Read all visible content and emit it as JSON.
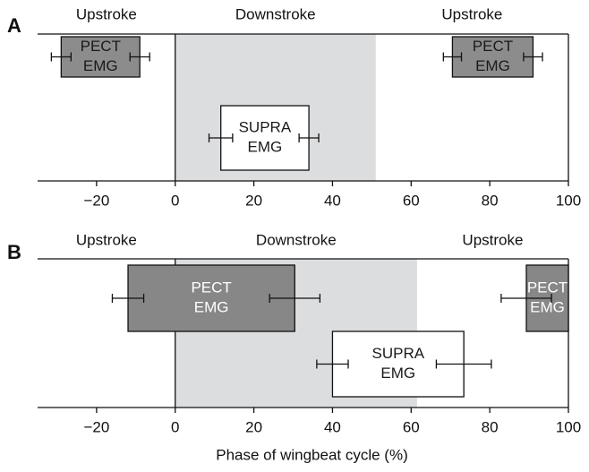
{
  "chart_data": [
    {
      "type": "phase",
      "panel": "A",
      "regions": [
        "Upstroke",
        "Downstroke",
        "Upstroke"
      ],
      "shade": [
        0,
        51
      ],
      "shade_color": "#dcdddf",
      "xlim": [
        -35,
        100
      ],
      "xticks": [
        {
          "value": -20,
          "label": "−20"
        },
        0,
        20,
        40,
        60,
        80,
        100
      ],
      "series": [
        {
          "label": [
            "PECT",
            "EMG"
          ],
          "color": "#8c8c8c",
          "text_color": "#1a1a1a",
          "bars": [
            {
              "start": -29,
              "end": -9,
              "start_err": 2.5,
              "end_err": 2.5
            },
            {
              "start": 70.5,
              "end": 91,
              "start_err": 2.3,
              "end_err": 2.4
            }
          ]
        },
        {
          "label": [
            "SUPRA",
            "EMG"
          ],
          "color": "#ffffff",
          "text_color": "#1a1a1a",
          "bars": [
            {
              "start": 11.6,
              "end": 34,
              "start_err": 3,
              "end_err": 2.5
            }
          ]
        }
      ]
    },
    {
      "type": "phase",
      "panel": "B",
      "regions": [
        "Upstroke",
        "Downstroke",
        "Upstroke"
      ],
      "shade": [
        0,
        61.5
      ],
      "shade_color": "#dcdddf",
      "xlim": [
        -35,
        100
      ],
      "xticks": [
        {
          "value": -20,
          "label": "−20"
        },
        0,
        20,
        40,
        60,
        80,
        100
      ],
      "x_label": "Phase of wingbeat cycle (%)",
      "series": [
        {
          "label": [
            "PECT",
            "EMG"
          ],
          "color": "#878787",
          "text_color": "#ffffff",
          "bars": [
            {
              "start": -12,
              "end": 30.4,
              "start_err": 4,
              "end_err": 6.4
            },
            {
              "start": 89.3,
              "end": 100,
              "start_err": 6.4
            }
          ]
        },
        {
          "label": [
            "SUPRA",
            "EMG"
          ],
          "color": "#ffffff",
          "text_color": "#1a1a1a",
          "bars": [
            {
              "start": 40,
              "end": 73.4,
              "start_err": 4,
              "end_err": 7
            }
          ]
        }
      ]
    }
  ]
}
